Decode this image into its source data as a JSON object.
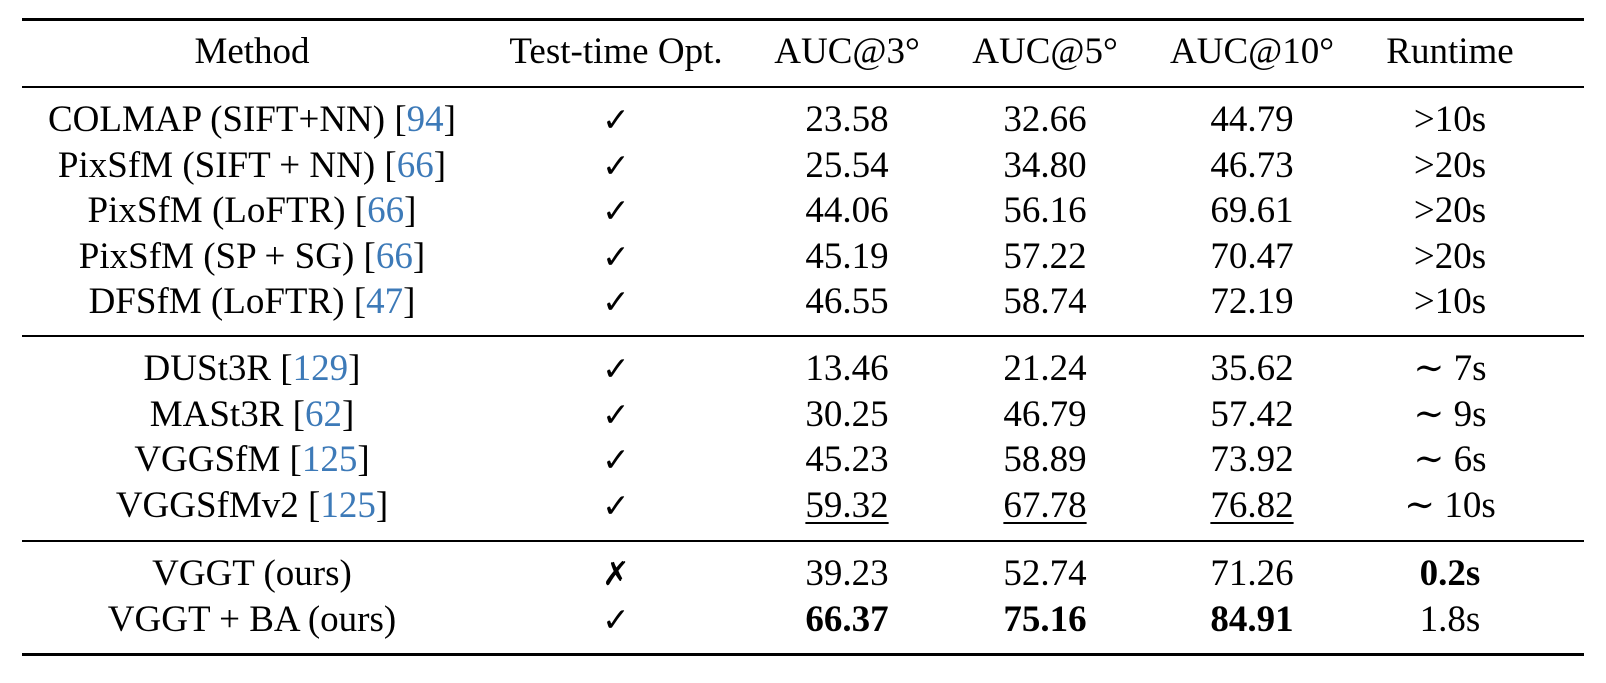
{
  "table": {
    "headers": [
      "Method",
      "Test-time Opt.",
      "AUC@3°",
      "AUC@5°",
      "AUC@10°",
      "Runtime"
    ],
    "check_symbol": "✓",
    "cross_symbol": "✗",
    "ref_color": "#3d7ab8",
    "groups": [
      [
        {
          "name": "COLMAP (SIFT+NN) [",
          "ref": "94",
          "close": "]",
          "opt": "✓",
          "auc3": "23.58",
          "auc5": "32.66",
          "auc10": "44.79",
          "runtime": ">10s"
        },
        {
          "name": "PixSfM (SIFT + NN) [",
          "ref": "66",
          "close": "]",
          "opt": "✓",
          "auc3": "25.54",
          "auc5": "34.80",
          "auc10": "46.73",
          "runtime": ">20s"
        },
        {
          "name": "PixSfM (LoFTR) [",
          "ref": "66",
          "close": "]",
          "opt": "✓",
          "auc3": "44.06",
          "auc5": "56.16",
          "auc10": "69.61",
          "runtime": ">20s"
        },
        {
          "name": "PixSfM (SP + SG) [",
          "ref": "66",
          "close": "]",
          "opt": "✓",
          "auc3": "45.19",
          "auc5": "57.22",
          "auc10": "70.47",
          "runtime": ">20s"
        },
        {
          "name": "DFSfM (LoFTR) [",
          "ref": "47",
          "close": "]",
          "opt": "✓",
          "auc3": "46.55",
          "auc5": "58.74",
          "auc10": "72.19",
          "runtime": ">10s"
        }
      ],
      [
        {
          "name": "DUSt3R [",
          "ref": "129",
          "close": "]",
          "opt": "✓",
          "auc3": "13.46",
          "auc5": "21.24",
          "auc10": "35.62",
          "runtime": "∼ 7s"
        },
        {
          "name": "MASt3R [",
          "ref": "62",
          "close": "]",
          "opt": "✓",
          "auc3": "30.25",
          "auc5": "46.79",
          "auc10": "57.42",
          "runtime": "∼ 9s"
        },
        {
          "name": "VGGSfM [",
          "ref": "125",
          "close": "]",
          "opt": "✓",
          "auc3": "45.23",
          "auc5": "58.89",
          "auc10": "73.92",
          "runtime": "∼ 6s"
        },
        {
          "name": "VGGSfMv2 [",
          "ref": "125",
          "close": "]",
          "opt": "✓",
          "auc3": "59.32",
          "auc5": "67.78",
          "auc10": "76.82",
          "runtime": "∼ 10s",
          "underline": [
            "auc3",
            "auc5",
            "auc10"
          ]
        }
      ],
      [
        {
          "name": "VGGT (ours)",
          "ref": "",
          "close": "",
          "opt": "✗",
          "auc3": "39.23",
          "auc5": "52.74",
          "auc10": "71.26",
          "runtime": "0.2s",
          "bold": [
            "runtime"
          ]
        },
        {
          "name": "VGGT + BA (ours)",
          "ref": "",
          "close": "",
          "opt": "✓",
          "auc3": "66.37",
          "auc5": "75.16",
          "auc10": "84.91",
          "runtime": "1.8s",
          "bold": [
            "auc3",
            "auc5",
            "auc10"
          ]
        }
      ]
    ]
  }
}
